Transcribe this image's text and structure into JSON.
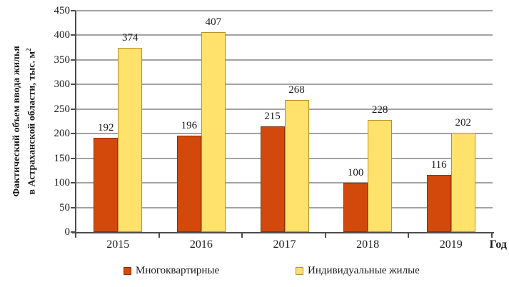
{
  "chart_data": {
    "type": "bar",
    "title": "",
    "categories": [
      "2015",
      "2016",
      "2017",
      "2018",
      "2019"
    ],
    "series": [
      {
        "name": "Многоквартирные",
        "color": "#d2490b",
        "border": "#8a3205",
        "values": [
          192,
          196,
          215,
          100,
          116
        ]
      },
      {
        "name": "Индивидуальные жилые",
        "color": "#ffe26b",
        "border": "#b98e2d",
        "values": [
          374,
          407,
          268,
          228,
          202
        ]
      }
    ],
    "ylabel_line1": "Фактический объем ввода жилья",
    "ylabel_line2": "в Астраханской области, тыс. м",
    "ylabel_sup": "2",
    "xlabel": "Год",
    "ylim": [
      0,
      450
    ],
    "yticks": [
      0,
      50,
      100,
      150,
      200,
      250,
      300,
      350,
      400,
      450
    ],
    "grid": "horizontal",
    "legend_position": "bottom",
    "colors": {
      "axis": "#4d4d4d",
      "gridline": "#a3a3a3",
      "background": "#ffffff",
      "text": "#1a1a1a"
    }
  }
}
